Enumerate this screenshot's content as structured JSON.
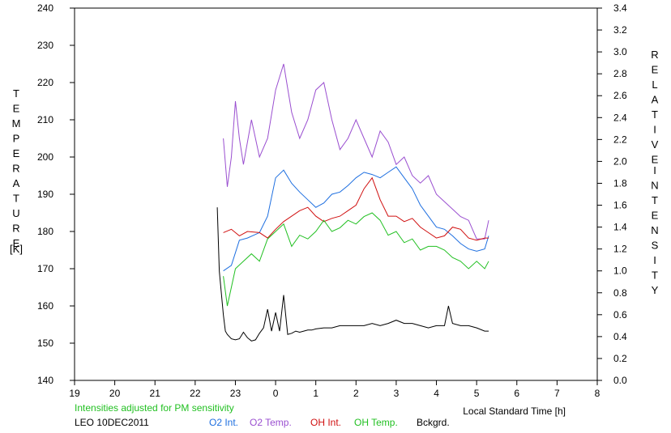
{
  "chart_data": {
    "type": "line",
    "title": "",
    "xlabel": "Local Standard Time [h]",
    "ylabel_left": "TEMPERATURE [K]",
    "ylabel_right": "RELATIVE INTENSITY",
    "xlim": [
      19,
      32
    ],
    "ylim_left": [
      140,
      240
    ],
    "ylim_right": [
      0.0,
      3.4
    ],
    "x_ticks": [
      "19",
      "20",
      "21",
      "22",
      "23",
      "0",
      "1",
      "2",
      "3",
      "4",
      "5",
      "6",
      "7",
      "8"
    ],
    "y_left_ticks": [
      "140",
      "150",
      "160",
      "170",
      "180",
      "190",
      "200",
      "210",
      "220",
      "230",
      "240"
    ],
    "y_right_ticks": [
      "0.0",
      "0.2",
      "0.4",
      "0.6",
      "0.8",
      "1.0",
      "1.2",
      "1.4",
      "1.6",
      "1.8",
      "2.0",
      "2.2",
      "2.4",
      "2.6",
      "2.8",
      "3.0",
      "3.2",
      "3.4"
    ],
    "note": "Intensities adjusted for PM sensitivity",
    "station": "LEO 10DEC2011",
    "series": [
      {
        "name": "O2 Int.",
        "axis": "right",
        "color": "#1e6fe0",
        "x": [
          22.7,
          22.9,
          23.1,
          23.3,
          23.6,
          23.8,
          24.0,
          24.2,
          24.4,
          24.6,
          24.8,
          25.0,
          25.2,
          25.4,
          25.6,
          25.8,
          26.0,
          26.2,
          26.4,
          26.6,
          26.8,
          27.0,
          27.2,
          27.4,
          27.6,
          27.8,
          28.0,
          28.2,
          28.4,
          28.6,
          28.8,
          29.0,
          29.2,
          29.3
        ],
        "y": [
          1.0,
          1.05,
          1.28,
          1.3,
          1.35,
          1.5,
          1.85,
          1.92,
          1.8,
          1.72,
          1.65,
          1.58,
          1.62,
          1.7,
          1.72,
          1.78,
          1.85,
          1.9,
          1.88,
          1.85,
          1.9,
          1.95,
          1.85,
          1.75,
          1.6,
          1.5,
          1.4,
          1.38,
          1.32,
          1.25,
          1.2,
          1.18,
          1.2,
          1.32
        ]
      },
      {
        "name": "O2 Temp.",
        "axis": "left",
        "color": "#9a4fd0",
        "x": [
          22.7,
          22.8,
          22.9,
          23.0,
          23.1,
          23.2,
          23.4,
          23.6,
          23.8,
          24.0,
          24.2,
          24.4,
          24.6,
          24.8,
          25.0,
          25.2,
          25.4,
          25.6,
          25.8,
          26.0,
          26.2,
          26.4,
          26.6,
          26.8,
          27.0,
          27.2,
          27.4,
          27.6,
          27.8,
          28.0,
          28.2,
          28.4,
          28.6,
          28.8,
          29.0,
          29.2,
          29.3
        ],
        "y": [
          205,
          192,
          200,
          215,
          205,
          198,
          210,
          200,
          205,
          218,
          225,
          212,
          205,
          210,
          218,
          220,
          210,
          202,
          205,
          210,
          205,
          200,
          207,
          204,
          198,
          200,
          195,
          193,
          195,
          190,
          188,
          186,
          184,
          183,
          178,
          178,
          183
        ]
      },
      {
        "name": "OH Int.",
        "axis": "right",
        "color": "#d01010",
        "x": [
          22.7,
          22.9,
          23.1,
          23.3,
          23.6,
          23.8,
          24.0,
          24.2,
          24.4,
          24.6,
          24.8,
          25.0,
          25.2,
          25.4,
          25.6,
          25.8,
          26.0,
          26.2,
          26.4,
          26.6,
          26.8,
          27.0,
          27.2,
          27.4,
          27.6,
          27.8,
          28.0,
          28.2,
          28.4,
          28.6,
          28.8,
          29.0,
          29.2,
          29.3
        ],
        "y": [
          1.35,
          1.38,
          1.32,
          1.36,
          1.35,
          1.3,
          1.38,
          1.45,
          1.5,
          1.55,
          1.58,
          1.5,
          1.45,
          1.48,
          1.5,
          1.55,
          1.6,
          1.75,
          1.85,
          1.65,
          1.5,
          1.5,
          1.45,
          1.48,
          1.4,
          1.35,
          1.3,
          1.32,
          1.4,
          1.38,
          1.3,
          1.28,
          1.3,
          1.3
        ]
      },
      {
        "name": "OH Temp.",
        "axis": "left",
        "color": "#22c022",
        "x": [
          22.7,
          22.8,
          22.9,
          23.0,
          23.2,
          23.4,
          23.6,
          23.8,
          24.0,
          24.2,
          24.4,
          24.6,
          24.8,
          25.0,
          25.2,
          25.4,
          25.6,
          25.8,
          26.0,
          26.2,
          26.4,
          26.6,
          26.8,
          27.0,
          27.2,
          27.4,
          27.6,
          27.8,
          28.0,
          28.2,
          28.4,
          28.6,
          28.8,
          29.0,
          29.2,
          29.3
        ],
        "y": [
          168,
          160,
          165,
          170,
          172,
          174,
          172,
          178,
          180,
          182,
          176,
          179,
          178,
          180,
          183,
          180,
          181,
          183,
          182,
          184,
          185,
          183,
          179,
          180,
          177,
          178,
          175,
          176,
          176,
          175,
          173,
          172,
          170,
          172,
          170,
          172
        ]
      },
      {
        "name": "Bckgrd.",
        "axis": "right",
        "color": "#000000",
        "x": [
          22.55,
          22.6,
          22.7,
          22.75,
          22.8,
          22.9,
          23.0,
          23.1,
          23.2,
          23.3,
          23.4,
          23.5,
          23.6,
          23.7,
          23.8,
          23.9,
          24.0,
          24.1,
          24.2,
          24.3,
          24.4,
          24.5,
          24.6,
          24.7,
          24.8,
          24.9,
          25.0,
          25.2,
          25.4,
          25.6,
          25.8,
          26.0,
          26.2,
          26.4,
          26.6,
          26.8,
          27.0,
          27.2,
          27.4,
          27.6,
          27.8,
          28.0,
          28.2,
          28.3,
          28.4,
          28.6,
          28.8,
          29.0,
          29.2,
          29.3
        ],
        "y": [
          1.58,
          1.0,
          0.6,
          0.45,
          0.42,
          0.38,
          0.37,
          0.38,
          0.44,
          0.39,
          0.36,
          0.37,
          0.43,
          0.48,
          0.65,
          0.45,
          0.62,
          0.45,
          0.78,
          0.42,
          0.43,
          0.45,
          0.44,
          0.45,
          0.46,
          0.46,
          0.47,
          0.48,
          0.48,
          0.5,
          0.5,
          0.5,
          0.5,
          0.52,
          0.5,
          0.52,
          0.55,
          0.52,
          0.52,
          0.5,
          0.48,
          0.5,
          0.5,
          0.68,
          0.52,
          0.5,
          0.5,
          0.48,
          0.45,
          0.45
        ]
      }
    ]
  }
}
